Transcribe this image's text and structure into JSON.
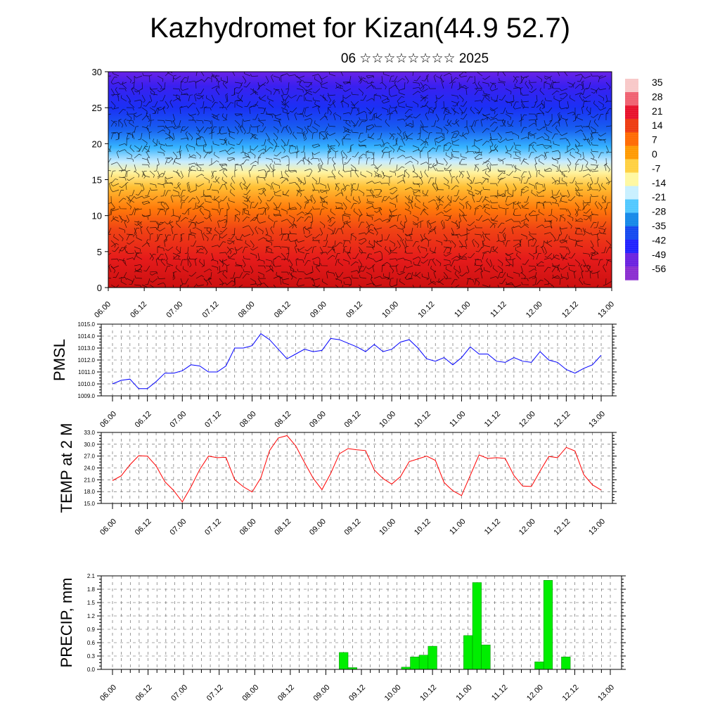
{
  "title": "Kazhydromet for Kizan(44.9 52.7)",
  "subtitle": "06 ☆☆☆☆☆☆☆☆ 2025",
  "colors": {
    "pmsl_line": "#0000ff",
    "temp_line": "#ff0000",
    "precip_bar": "#00ee00",
    "precip_bar_edge": "#008800",
    "wind_barb": "#000000",
    "grid": "#555555"
  },
  "chart_data": [
    {
      "type": "heatmap",
      "name": "cross-section",
      "ylim": [
        0,
        30
      ],
      "yticks": [
        "0",
        "5",
        "10",
        "15",
        "20",
        "25",
        "30"
      ],
      "xticks": [
        "06.00",
        "06.12",
        "07.00",
        "07.12",
        "08.00",
        "08.12",
        "09.00",
        "09.12",
        "10.00",
        "10.12",
        "11.00",
        "11.12",
        "12.00",
        "12.12",
        "13.00"
      ],
      "colorbar_labels": [
        "35",
        "28",
        "21",
        "14",
        "7",
        "0",
        "-7",
        "-14",
        "-21",
        "-28",
        "-35",
        "-42",
        "-49",
        "-56"
      ],
      "colorbar_colors": [
        "#f8c8c8",
        "#f06070",
        "#e8102a",
        "#ee3a10",
        "#ff6a00",
        "#ff9a00",
        "#ffd040",
        "#fff8a0",
        "#c8f0ff",
        "#50c8ff",
        "#1488e8",
        "#1448f0",
        "#2020ff",
        "#6a20e0",
        "#8a2cd0"
      ],
      "field_stops": [
        {
          "level": 0,
          "color": "#cc1010"
        },
        {
          "level": 4,
          "color": "#e51b1b"
        },
        {
          "level": 8,
          "color": "#f04214"
        },
        {
          "level": 11,
          "color": "#ff7a0a"
        },
        {
          "level": 14,
          "color": "#ffc035"
        },
        {
          "level": 16,
          "color": "#fff3a0"
        },
        {
          "level": 17.5,
          "color": "#c8ecff"
        },
        {
          "level": 19.5,
          "color": "#36b4ff"
        },
        {
          "level": 22,
          "color": "#1860f0"
        },
        {
          "level": 25,
          "color": "#1a30f5"
        },
        {
          "level": 28,
          "color": "#3a20f0"
        },
        {
          "level": 30,
          "color": "#6a22e6"
        }
      ]
    },
    {
      "type": "line",
      "ylabel": "PMSL",
      "ylim": [
        1009,
        1015
      ],
      "yticks": [
        "1009.0",
        "1010.0",
        "1011.0",
        "1012.0",
        "1013.0",
        "1014.0",
        "1015.0"
      ],
      "xticks": [
        "06.00",
        "06.12",
        "07.00",
        "07.12",
        "08.00",
        "08.12",
        "09.00",
        "09.12",
        "10.00",
        "10.12",
        "11.00",
        "11.12",
        "12.00",
        "12.12",
        "13.00"
      ],
      "series": [
        {
          "values": [
            1010.0,
            1010.3,
            1010.4,
            1009.6,
            1009.6,
            1010.2,
            1010.9,
            1010.9,
            1011.1,
            1011.6,
            1011.5,
            1011.0,
            1011.0,
            1011.5,
            1013.0,
            1013.0,
            1013.2,
            1014.2,
            1013.7,
            1012.9,
            1012.1,
            1012.5,
            1012.9,
            1012.7,
            1012.8,
            1013.8,
            1013.7,
            1013.4,
            1013.1,
            1012.7,
            1013.3,
            1012.7,
            1012.9,
            1013.5,
            1013.7,
            1013.0,
            1012.1,
            1011.9,
            1012.2,
            1011.6,
            1012.2,
            1013.1,
            1012.5,
            1012.5,
            1011.9,
            1011.8,
            1012.2,
            1011.9,
            1011.8,
            1012.7,
            1012.0,
            1011.8,
            1011.2,
            1010.9,
            1011.3,
            1011.6,
            1012.4
          ]
        }
      ]
    },
    {
      "type": "line",
      "ylabel": "TEMP at 2 M",
      "ylim": [
        15,
        33
      ],
      "yticks": [
        "15.0",
        "18.0",
        "21.0",
        "24.0",
        "27.0",
        "30.0",
        "33.0"
      ],
      "xticks": [
        "06.00",
        "06.12",
        "07.00",
        "07.12",
        "08.00",
        "08.12",
        "09.00",
        "09.12",
        "10.00",
        "10.12",
        "11.00",
        "11.12",
        "12.00",
        "12.12",
        "13.00"
      ],
      "series": [
        {
          "values": [
            20.8,
            22.0,
            24.8,
            27.1,
            27.0,
            24.5,
            20.5,
            18.3,
            15.4,
            19.2,
            23.6,
            27.0,
            26.6,
            26.7,
            21.0,
            19.2,
            17.9,
            21.5,
            28.4,
            31.6,
            32.2,
            29.6,
            25.4,
            21.4,
            18.5,
            22.6,
            27.6,
            28.9,
            28.6,
            28.4,
            23.5,
            21.3,
            19.9,
            21.8,
            25.6,
            26.3,
            27.0,
            25.9,
            20.3,
            18.2,
            17.0,
            22.1,
            27.3,
            26.4,
            26.6,
            26.4,
            22.1,
            19.4,
            19.3,
            23.2,
            26.9,
            26.6,
            29.2,
            28.3,
            22.3,
            19.7,
            18.4
          ]
        }
      ]
    },
    {
      "type": "bar",
      "ylabel": "PRECIP, mm",
      "ylim": [
        0,
        2.1
      ],
      "yticks": [
        "0.0",
        "0.3",
        "0.6",
        "0.9",
        "1.2",
        "1.5",
        "1.8",
        "2.1"
      ],
      "xticks": [
        "06.00",
        "06.12",
        "07.00",
        "07.12",
        "08.00",
        "08.12",
        "09.00",
        "09.12",
        "10.00",
        "10.12",
        "11.00",
        "11.12",
        "12.00",
        "12.12",
        "13.00"
      ],
      "values": [
        0,
        0,
        0,
        0,
        0,
        0,
        0,
        0,
        0,
        0,
        0,
        0,
        0,
        0,
        0,
        0,
        0,
        0,
        0,
        0,
        0,
        0,
        0,
        0,
        0,
        0,
        0.38,
        0.04,
        0,
        0,
        0,
        0,
        0,
        0.05,
        0.28,
        0.32,
        0.52,
        0,
        0,
        0,
        0.76,
        1.95,
        0.55,
        0,
        0,
        0,
        0,
        0,
        0.17,
        2.0,
        0,
        0.28,
        0,
        0,
        0,
        0
      ]
    }
  ]
}
